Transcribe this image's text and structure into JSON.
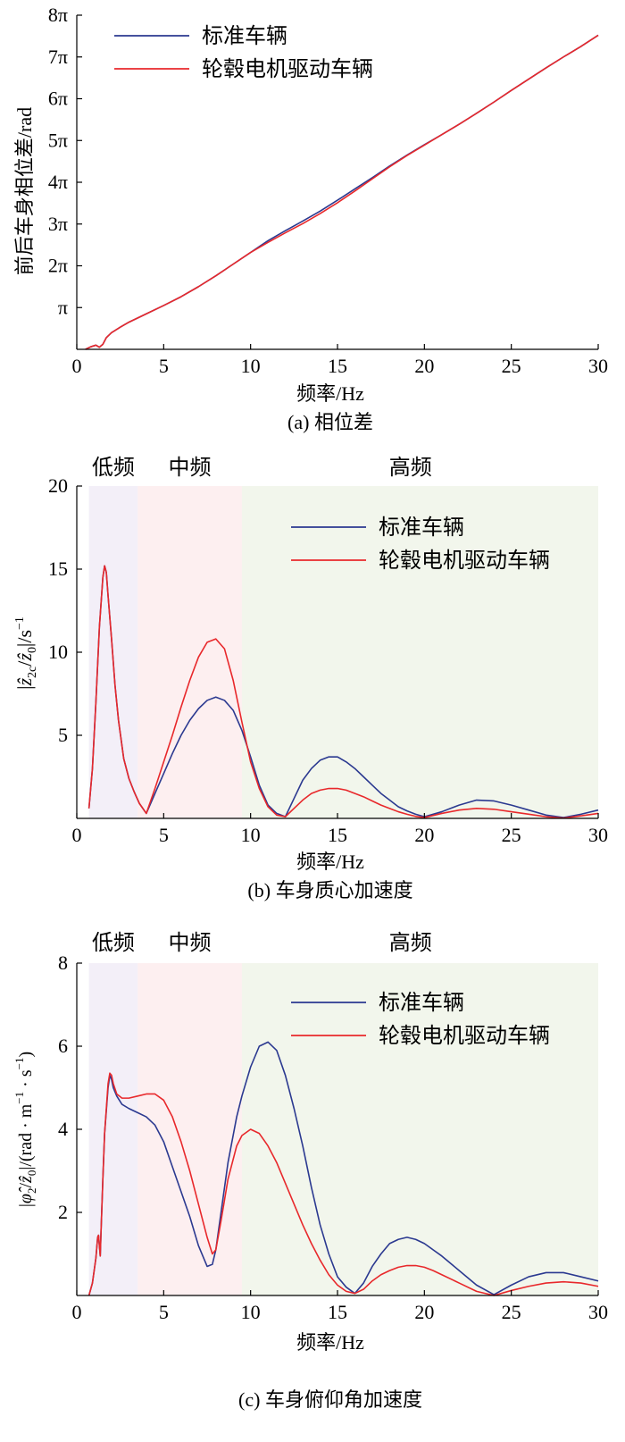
{
  "chart_data": [
    {
      "id": "phase",
      "type": "line",
      "caption": "(a) 相位差",
      "xlabel": "频率/Hz",
      "ylabel": "前后车身相位差/rad",
      "xlim": [
        0,
        30
      ],
      "ylim": [
        0,
        8
      ],
      "y_unit_symbol": "π",
      "xticks": [
        "0",
        "5",
        "10",
        "15",
        "20",
        "25",
        "30"
      ],
      "yticks": [
        "π",
        "2π",
        "3π",
        "4π",
        "5π",
        "6π",
        "7π",
        "8π"
      ],
      "legend_position": "top-left",
      "series": [
        {
          "name": "标准车辆",
          "color": "#2b3990",
          "x": [
            0.5,
            0.8,
            1.1,
            1.3,
            1.5,
            1.7,
            2.0,
            2.5,
            3,
            4,
            5,
            6,
            7,
            8,
            9,
            10,
            11,
            12,
            13,
            14,
            15,
            16,
            17,
            18,
            19,
            20,
            21,
            22,
            23,
            24,
            25,
            26,
            27,
            28,
            29,
            30
          ],
          "y": [
            0.0,
            0.06,
            0.1,
            0.05,
            0.12,
            0.28,
            0.4,
            0.53,
            0.65,
            0.85,
            1.05,
            1.26,
            1.5,
            1.76,
            2.04,
            2.32,
            2.6,
            2.84,
            3.07,
            3.31,
            3.57,
            3.84,
            4.11,
            4.39,
            4.65,
            4.9,
            5.14,
            5.39,
            5.65,
            5.92,
            6.2,
            6.47,
            6.74,
            7.0,
            7.25,
            7.52
          ]
        },
        {
          "name": "轮毂电机驱动车辆",
          "color": "#e8282b",
          "x": [
            0.5,
            0.8,
            1.1,
            1.3,
            1.5,
            1.7,
            2.0,
            2.5,
            3,
            4,
            5,
            6,
            7,
            8,
            9,
            10,
            11,
            12,
            13,
            14,
            15,
            16,
            17,
            18,
            19,
            20,
            21,
            22,
            23,
            24,
            25,
            26,
            27,
            28,
            29,
            30
          ],
          "y": [
            0.0,
            0.06,
            0.1,
            0.05,
            0.12,
            0.28,
            0.4,
            0.53,
            0.65,
            0.85,
            1.05,
            1.26,
            1.5,
            1.76,
            2.04,
            2.32,
            2.56,
            2.79,
            3.01,
            3.25,
            3.51,
            3.79,
            4.08,
            4.37,
            4.64,
            4.89,
            5.14,
            5.39,
            5.65,
            5.92,
            6.2,
            6.47,
            6.74,
            7.0,
            7.25,
            7.52
          ]
        }
      ]
    },
    {
      "id": "accel",
      "type": "line",
      "caption": "(b) 车身质心加速度",
      "xlabel": "频率/Hz",
      "ylabel_parts": [
        "|",
        "ẑ",
        "2c",
        "/",
        "ẑ",
        "0",
        "|/s",
        "−1"
      ],
      "xlim": [
        0,
        30
      ],
      "ylim": [
        0,
        20
      ],
      "xticks": [
        "0",
        "5",
        "10",
        "15",
        "20",
        "25",
        "30"
      ],
      "yticks": [
        "5",
        "10",
        "15",
        "20"
      ],
      "region_labels": [
        "低频",
        "中频",
        "高频"
      ],
      "regions": [
        {
          "from": 0.7,
          "to": 3.5,
          "color": "#f3eff8"
        },
        {
          "from": 3.5,
          "to": 9.5,
          "color": "#fdeff0"
        },
        {
          "from": 9.5,
          "to": 30,
          "color": "#f2f6ec"
        }
      ],
      "legend_position": "top-right",
      "series": [
        {
          "name": "标准车辆",
          "color": "#2b3990",
          "x": [
            0.7,
            0.9,
            1.1,
            1.3,
            1.5,
            1.6,
            1.7,
            1.8,
            2.0,
            2.2,
            2.4,
            2.7,
            3.0,
            3.3,
            3.6,
            4.0,
            4.5,
            5,
            5.5,
            6,
            6.5,
            7,
            7.5,
            8,
            8.5,
            9,
            9.5,
            10,
            10.5,
            11,
            11.5,
            12,
            12.5,
            13,
            13.5,
            14,
            14.5,
            15,
            15.5,
            16,
            16.5,
            17,
            17.5,
            18,
            18.5,
            19,
            19.5,
            20,
            21,
            22,
            23,
            24,
            25,
            26,
            27,
            28,
            29,
            30
          ],
          "y": [
            0.6,
            3.0,
            7.0,
            11.5,
            14.5,
            15.2,
            14.8,
            13.4,
            10.8,
            8.0,
            5.9,
            3.6,
            2.4,
            1.6,
            0.9,
            0.3,
            1.5,
            2.7,
            3.9,
            5.0,
            5.9,
            6.6,
            7.1,
            7.3,
            7.1,
            6.5,
            5.3,
            3.7,
            2.0,
            0.8,
            0.3,
            0.1,
            1.2,
            2.3,
            3.0,
            3.5,
            3.7,
            3.7,
            3.4,
            3.0,
            2.5,
            2.0,
            1.5,
            1.1,
            0.7,
            0.45,
            0.25,
            0.1,
            0.4,
            0.8,
            1.1,
            1.05,
            0.8,
            0.5,
            0.2,
            0.05,
            0.25,
            0.5
          ]
        },
        {
          "name": "轮毂电机驱动车辆",
          "color": "#e8282b",
          "x": [
            0.7,
            0.9,
            1.1,
            1.3,
            1.5,
            1.6,
            1.7,
            1.8,
            2.0,
            2.2,
            2.4,
            2.7,
            3.0,
            3.3,
            3.6,
            4.0,
            4.5,
            5,
            5.5,
            6,
            6.5,
            7,
            7.5,
            8,
            8.5,
            9,
            9.5,
            10,
            10.5,
            11,
            11.5,
            12,
            12.5,
            13,
            13.5,
            14,
            14.5,
            15,
            15.5,
            16,
            16.5,
            17,
            17.5,
            18,
            18.5,
            19,
            19.5,
            20,
            21,
            22,
            23,
            24,
            25,
            26,
            27,
            28,
            29,
            30
          ],
          "y": [
            0.6,
            3.0,
            7.0,
            11.5,
            14.5,
            15.2,
            14.8,
            13.4,
            10.8,
            8.0,
            5.9,
            3.6,
            2.4,
            1.6,
            0.9,
            0.3,
            1.8,
            3.4,
            5.0,
            6.7,
            8.3,
            9.7,
            10.6,
            10.8,
            10.2,
            8.3,
            5.8,
            3.4,
            1.8,
            0.7,
            0.2,
            0.1,
            0.6,
            1.1,
            1.5,
            1.7,
            1.8,
            1.8,
            1.7,
            1.5,
            1.3,
            1.05,
            0.8,
            0.6,
            0.4,
            0.25,
            0.12,
            0.05,
            0.3,
            0.5,
            0.6,
            0.55,
            0.4,
            0.25,
            0.1,
            0.02,
            0.15,
            0.3
          ]
        }
      ]
    },
    {
      "id": "pitch",
      "type": "line",
      "caption": "(c) 车身俯仰角加速度",
      "xlabel": "频率/Hz",
      "ylabel_parts": [
        "|",
        "φ̂",
        "2",
        "/",
        "ẑ",
        "0",
        "|/(rad · m",
        "−1",
        " · s",
        "−1",
        ")"
      ],
      "xlim": [
        0,
        30
      ],
      "ylim": [
        0,
        8
      ],
      "xticks": [
        "0",
        "5",
        "10",
        "15",
        "20",
        "25",
        "30"
      ],
      "yticks": [
        "2",
        "4",
        "6",
        "8"
      ],
      "region_labels": [
        "低频",
        "中频",
        "高频"
      ],
      "regions": [
        {
          "from": 0.7,
          "to": 3.5,
          "color": "#f3eff8"
        },
        {
          "from": 3.5,
          "to": 9.5,
          "color": "#fdeff0"
        },
        {
          "from": 9.5,
          "to": 30,
          "color": "#f2f6ec"
        }
      ],
      "legend_position": "top-right",
      "series": [
        {
          "name": "标准车辆",
          "color": "#2b3990",
          "x": [
            0.7,
            0.9,
            1.1,
            1.2,
            1.25,
            1.3,
            1.35,
            1.4,
            1.5,
            1.6,
            1.8,
            1.9,
            2.0,
            2.1,
            2.3,
            2.6,
            3.0,
            3.5,
            4,
            4.5,
            5,
            5.5,
            6,
            6.5,
            7,
            7.5,
            7.8,
            8.0,
            8.3,
            8.7,
            9.2,
            9.5,
            10,
            10.5,
            11,
            11.5,
            12,
            12.5,
            13,
            13.5,
            14,
            14.5,
            15,
            15.5,
            16,
            16.5,
            17,
            17.5,
            18,
            18.5,
            19,
            19.5,
            20,
            20.5,
            21,
            22,
            23,
            24,
            25,
            26,
            27,
            28,
            29,
            30
          ],
          "y": [
            0.0,
            0.3,
            0.9,
            1.4,
            1.45,
            1.2,
            0.95,
            1.6,
            2.8,
            3.9,
            5.0,
            5.3,
            5.2,
            5.0,
            4.8,
            4.6,
            4.5,
            4.4,
            4.3,
            4.1,
            3.7,
            3.1,
            2.5,
            1.9,
            1.2,
            0.7,
            0.75,
            1.1,
            2.0,
            3.2,
            4.3,
            4.8,
            5.5,
            6.0,
            6.1,
            5.9,
            5.3,
            4.5,
            3.6,
            2.6,
            1.7,
            1.0,
            0.45,
            0.2,
            0.05,
            0.3,
            0.7,
            1.0,
            1.25,
            1.35,
            1.4,
            1.35,
            1.25,
            1.1,
            0.95,
            0.6,
            0.25,
            0.02,
            0.25,
            0.45,
            0.55,
            0.55,
            0.45,
            0.35
          ]
        },
        {
          "name": "轮毂电机驱动车辆",
          "color": "#e8282b",
          "x": [
            0.7,
            0.9,
            1.1,
            1.2,
            1.25,
            1.3,
            1.35,
            1.4,
            1.5,
            1.6,
            1.8,
            1.9,
            2.0,
            2.1,
            2.3,
            2.6,
            3.0,
            3.5,
            4,
            4.5,
            5,
            5.5,
            6,
            6.5,
            7,
            7.5,
            7.8,
            8.0,
            8.3,
            8.7,
            9.2,
            9.5,
            10,
            10.5,
            11,
            11.5,
            12,
            12.5,
            13,
            13.5,
            14,
            14.5,
            15,
            15.5,
            16,
            16.5,
            17,
            17.5,
            18,
            18.5,
            19,
            19.5,
            20,
            20.5,
            21,
            22,
            23,
            24,
            25,
            26,
            27,
            28,
            29,
            30
          ],
          "y": [
            0.0,
            0.3,
            0.9,
            1.4,
            1.45,
            1.2,
            0.95,
            1.6,
            2.8,
            3.9,
            5.1,
            5.35,
            5.3,
            5.1,
            4.85,
            4.75,
            4.75,
            4.8,
            4.85,
            4.85,
            4.7,
            4.3,
            3.7,
            3.0,
            2.2,
            1.4,
            1.0,
            1.1,
            1.8,
            2.8,
            3.6,
            3.85,
            4.0,
            3.9,
            3.6,
            3.2,
            2.7,
            2.2,
            1.7,
            1.25,
            0.85,
            0.5,
            0.25,
            0.1,
            0.05,
            0.15,
            0.35,
            0.5,
            0.6,
            0.68,
            0.72,
            0.72,
            0.68,
            0.6,
            0.5,
            0.3,
            0.1,
            0.0,
            0.12,
            0.22,
            0.3,
            0.33,
            0.3,
            0.22
          ]
        }
      ]
    }
  ]
}
